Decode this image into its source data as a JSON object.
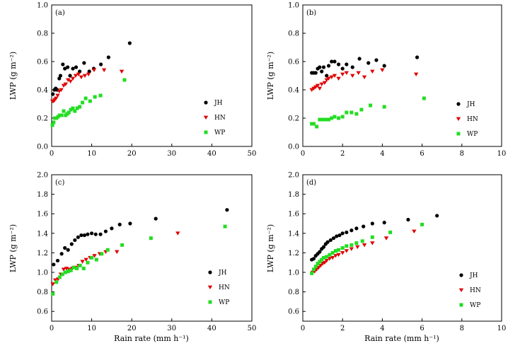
{
  "colors": {
    "JH": "#000000",
    "HN": "#e00000",
    "WP": "#22dd22"
  },
  "chart_data": [
    {
      "id": "a",
      "type": "scatter",
      "tag": "(a)",
      "xlabel": "",
      "ylabel": "LWP (g m⁻²)",
      "xlim": [
        0,
        50
      ],
      "ylim": [
        0,
        1.0
      ],
      "xticks": [
        "0",
        "10",
        "20",
        "30",
        "40",
        "50"
      ],
      "yticks": [
        "0.0",
        "0.2",
        "0.4",
        "0.6",
        "0.8",
        "1.0"
      ],
      "legend": [
        "JH",
        "HN",
        "WP"
      ],
      "series": [
        {
          "name": "JH",
          "marker": "circle",
          "x": [
            0.3,
            0.7,
            1.0,
            1.4,
            1.9,
            2.2,
            2.8,
            3.3,
            4.0,
            4.6,
            5.3,
            6.1,
            7.0,
            8.1,
            9.4,
            10.5,
            12.3,
            14.2,
            19.5
          ],
          "y": [
            0.37,
            0.4,
            0.41,
            0.4,
            0.48,
            0.5,
            0.58,
            0.55,
            0.56,
            0.5,
            0.55,
            0.56,
            0.53,
            0.59,
            0.53,
            0.55,
            0.58,
            0.63,
            0.73
          ]
        },
        {
          "name": "HN",
          "marker": "triangle",
          "x": [
            0.2,
            0.5,
            0.8,
            1.1,
            1.5,
            1.9,
            2.4,
            3.0,
            3.5,
            4.1,
            4.7,
            5.3,
            6.0,
            6.7,
            7.4,
            8.3,
            9.2,
            10.6,
            13.1,
            17.5
          ],
          "y": [
            0.32,
            0.32,
            0.33,
            0.34,
            0.36,
            0.39,
            0.4,
            0.43,
            0.44,
            0.47,
            0.46,
            0.48,
            0.5,
            0.51,
            0.49,
            0.5,
            0.51,
            0.54,
            0.54,
            0.53
          ]
        },
        {
          "name": "WP",
          "marker": "square",
          "x": [
            0.2,
            0.5,
            0.8,
            1.2,
            1.6,
            2.0,
            2.5,
            3.0,
            3.5,
            3.9,
            4.3,
            4.8,
            5.3,
            5.8,
            6.4,
            7.0,
            7.7,
            8.5,
            9.6,
            10.8,
            12.2,
            18.2
          ],
          "y": [
            0.15,
            0.17,
            0.2,
            0.2,
            0.21,
            0.22,
            0.22,
            0.25,
            0.22,
            0.23,
            0.24,
            0.26,
            0.27,
            0.25,
            0.27,
            0.28,
            0.31,
            0.34,
            0.32,
            0.35,
            0.36,
            0.47
          ]
        }
      ]
    },
    {
      "id": "b",
      "type": "scatter",
      "tag": "(b)",
      "xlabel": "",
      "ylabel": "LWP (g m⁻²)",
      "xlim": [
        0,
        10
      ],
      "ylim": [
        0,
        1.0
      ],
      "xticks": [
        "0",
        "2",
        "4",
        "6",
        "8",
        "10"
      ],
      "yticks": [
        "0.0",
        "0.2",
        "0.4",
        "0.6",
        "0.8",
        "1.0"
      ],
      "legend": [
        "JH",
        "HN",
        "WP"
      ],
      "series": [
        {
          "name": "JH",
          "marker": "circle",
          "x": [
            0.45,
            0.55,
            0.65,
            0.75,
            0.85,
            0.95,
            1.05,
            1.2,
            1.3,
            1.45,
            1.6,
            1.8,
            2.0,
            2.2,
            2.5,
            2.85,
            3.3,
            3.7,
            4.1,
            5.75
          ],
          "y": [
            0.52,
            0.52,
            0.52,
            0.55,
            0.56,
            0.53,
            0.56,
            0.5,
            0.57,
            0.6,
            0.6,
            0.58,
            0.55,
            0.58,
            0.56,
            0.62,
            0.59,
            0.61,
            0.57,
            0.63
          ]
        },
        {
          "name": "HN",
          "marker": "triangle",
          "x": [
            0.45,
            0.55,
            0.65,
            0.75,
            0.85,
            0.95,
            1.1,
            1.2,
            1.3,
            1.45,
            1.6,
            1.8,
            2.0,
            2.2,
            2.5,
            2.8,
            3.1,
            3.5,
            4.0,
            5.7
          ],
          "y": [
            0.4,
            0.41,
            0.42,
            0.43,
            0.41,
            0.44,
            0.45,
            0.47,
            0.48,
            0.49,
            0.5,
            0.48,
            0.51,
            0.52,
            0.5,
            0.52,
            0.49,
            0.53,
            0.54,
            0.51
          ]
        },
        {
          "name": "WP",
          "marker": "square",
          "x": [
            0.45,
            0.55,
            0.7,
            0.85,
            1.0,
            1.15,
            1.3,
            1.45,
            1.6,
            1.8,
            2.0,
            2.2,
            2.45,
            2.7,
            2.95,
            3.4,
            4.1,
            6.1
          ],
          "y": [
            0.16,
            0.16,
            0.14,
            0.19,
            0.19,
            0.19,
            0.19,
            0.2,
            0.21,
            0.2,
            0.21,
            0.24,
            0.24,
            0.23,
            0.26,
            0.29,
            0.28,
            0.34
          ]
        }
      ]
    },
    {
      "id": "c",
      "type": "scatter",
      "tag": "(c)",
      "xlabel": "Rain rate (mm h⁻¹)",
      "ylabel": "LWP (g m⁻²)",
      "xlim": [
        0,
        50
      ],
      "ylim": [
        0.5,
        2.0
      ],
      "xticks": [
        "0",
        "10",
        "20",
        "30",
        "40",
        "50"
      ],
      "yticks": [
        "0.6",
        "0.8",
        "1.0",
        "1.2",
        "1.4",
        "1.6",
        "1.8",
        "2.0"
      ],
      "legend": [
        "JH",
        "HN",
        "WP"
      ],
      "series": [
        {
          "name": "JH",
          "marker": "circle",
          "x": [
            0.5,
            1.5,
            2.5,
            3.3,
            4.1,
            5.0,
            5.8,
            6.6,
            7.4,
            8.2,
            9.0,
            10.0,
            11.0,
            12.2,
            13.5,
            15.0,
            17.0,
            19.6,
            26.0,
            43.8
          ],
          "y": [
            1.08,
            1.12,
            1.19,
            1.25,
            1.23,
            1.29,
            1.33,
            1.36,
            1.38,
            1.38,
            1.39,
            1.4,
            1.39,
            1.39,
            1.42,
            1.45,
            1.49,
            1.5,
            1.55,
            1.64
          ]
        },
        {
          "name": "HN",
          "marker": "triangle",
          "x": [
            0.3,
            0.9,
            1.6,
            2.3,
            3.0,
            3.7,
            4.4,
            5.2,
            6.0,
            6.8,
            7.7,
            8.6,
            9.6,
            10.7,
            12.0,
            13.5,
            16.3,
            31.5
          ],
          "y": [
            0.88,
            0.92,
            0.93,
            0.98,
            1.03,
            1.04,
            1.03,
            1.04,
            1.05,
            1.07,
            1.11,
            1.13,
            1.15,
            1.17,
            1.19,
            1.21,
            1.21,
            1.4
          ]
        },
        {
          "name": "WP",
          "marker": "square",
          "x": [
            0.3,
            1.2,
            2.0,
            2.7,
            3.4,
            4.1,
            4.8,
            5.5,
            6.3,
            7.1,
            8.0,
            9.0,
            10.0,
            11.2,
            12.5,
            14.0,
            17.6,
            24.8,
            43.3
          ],
          "y": [
            0.78,
            0.9,
            0.95,
            0.98,
            1.0,
            1.01,
            1.02,
            1.05,
            1.04,
            1.07,
            1.04,
            1.1,
            1.15,
            1.13,
            1.19,
            1.23,
            1.28,
            1.35,
            1.47
          ]
        }
      ]
    },
    {
      "id": "d",
      "type": "scatter",
      "tag": "(d)",
      "xlabel": "Rain rate (mm h⁻¹)",
      "ylabel": "LWP (g m⁻²)",
      "xlim": [
        0,
        10
      ],
      "ylim": [
        0.5,
        2.0
      ],
      "xticks": [
        "0",
        "2",
        "4",
        "6",
        "8",
        "10"
      ],
      "yticks": [
        "0.6",
        "0.8",
        "1.0",
        "1.2",
        "1.4",
        "1.6",
        "1.8",
        "2.0"
      ],
      "legend": [
        "JH",
        "HN",
        "WP"
      ],
      "series": [
        {
          "name": "JH",
          "marker": "circle",
          "x": [
            0.45,
            0.55,
            0.65,
            0.75,
            0.85,
            0.95,
            1.05,
            1.15,
            1.25,
            1.4,
            1.55,
            1.7,
            1.85,
            2.0,
            2.2,
            2.45,
            2.7,
            3.05,
            3.5,
            4.1,
            5.3,
            6.75
          ],
          "y": [
            1.13,
            1.14,
            1.17,
            1.19,
            1.21,
            1.24,
            1.26,
            1.29,
            1.31,
            1.33,
            1.35,
            1.37,
            1.38,
            1.4,
            1.41,
            1.43,
            1.45,
            1.47,
            1.5,
            1.51,
            1.54,
            1.58
          ]
        },
        {
          "name": "HN",
          "marker": "triangle",
          "x": [
            0.5,
            0.6,
            0.7,
            0.8,
            0.9,
            1.0,
            1.1,
            1.2,
            1.35,
            1.5,
            1.65,
            1.8,
            2.0,
            2.2,
            2.45,
            2.75,
            3.1,
            3.5,
            4.2,
            5.6
          ],
          "y": [
            1.0,
            1.01,
            1.03,
            1.05,
            1.07,
            1.09,
            1.1,
            1.12,
            1.14,
            1.15,
            1.17,
            1.18,
            1.2,
            1.22,
            1.24,
            1.26,
            1.28,
            1.3,
            1.35,
            1.42
          ]
        },
        {
          "name": "WP",
          "marker": "square",
          "x": [
            0.45,
            0.55,
            0.65,
            0.75,
            0.85,
            0.95,
            1.05,
            1.2,
            1.35,
            1.5,
            1.65,
            1.8,
            2.0,
            2.2,
            2.45,
            2.7,
            3.0,
            3.5,
            4.4,
            6.0
          ],
          "y": [
            0.99,
            1.03,
            1.06,
            1.09,
            1.11,
            1.13,
            1.15,
            1.16,
            1.18,
            1.2,
            1.22,
            1.23,
            1.25,
            1.27,
            1.28,
            1.3,
            1.32,
            1.36,
            1.41,
            1.49
          ]
        }
      ]
    }
  ]
}
